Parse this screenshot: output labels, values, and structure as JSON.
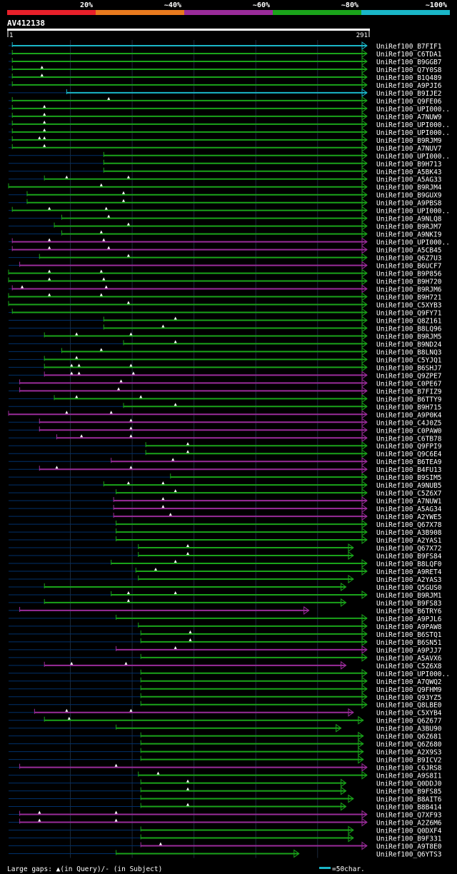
{
  "query_id": "AV412138",
  "axis": {
    "start": "1",
    "end": "291",
    "length": 291
  },
  "identity_legend": [
    {
      "label": "20%",
      "color": "#e8202a"
    },
    {
      "label": "~40%",
      "color": "#e87a1e"
    },
    {
      "label": "~60%",
      "color": "#9a2c9a"
    },
    {
      "label": "~80%",
      "color": "#1aa31a"
    },
    {
      "label": "~100%",
      "color": "#1ab6c8"
    }
  ],
  "colors": {
    "teal": "#1ab6c8",
    "green": "#1aa31a",
    "purple": "#9a2c9a",
    "gap": "#00306a",
    "grid": "#1c2a3c",
    "text": "#ffffff"
  },
  "footer": {
    "gaps_label": "Large gaps: ▲(in Query)/- (in Subject)",
    "scale_label": "=50char."
  },
  "chart_data": {
    "type": "alignment",
    "hits": [
      {
        "name": "UniRef100_B7FIF1",
        "color": "teal",
        "qs": 4,
        "qe": 291,
        "marks": []
      },
      {
        "name": "UniRef100_C6TDA1",
        "color": "green",
        "qs": 4,
        "qe": 291,
        "marks": []
      },
      {
        "name": "UniRef100_B9GGB7",
        "color": "green",
        "qs": 4,
        "qe": 291,
        "marks": []
      },
      {
        "name": "UniRef100_Q7Y0S8",
        "color": "green",
        "qs": 4,
        "qe": 291,
        "marks": [
          28
        ]
      },
      {
        "name": "UniRef100_B1Q489",
        "color": "green",
        "qs": 4,
        "qe": 291,
        "marks": [
          28
        ]
      },
      {
        "name": "UniRef100_A9PJI6",
        "color": "green",
        "qs": 4,
        "qe": 291,
        "marks": []
      },
      {
        "name": "UniRef100_B9IJE2",
        "color": "teal",
        "qs": 48,
        "qe": 291,
        "marks": []
      },
      {
        "name": "UniRef100_Q9FE06",
        "color": "green",
        "qs": 4,
        "qe": 291,
        "marks": [
          82
        ]
      },
      {
        "name": "UniRef100_UPI000..",
        "color": "green",
        "qs": 4,
        "qe": 291,
        "marks": [
          30
        ]
      },
      {
        "name": "UniRef100_A7NUW9",
        "color": "green",
        "qs": 4,
        "qe": 291,
        "marks": [
          30
        ]
      },
      {
        "name": "UniRef100_UPI000..",
        "color": "green",
        "qs": 4,
        "qe": 291,
        "marks": [
          30
        ]
      },
      {
        "name": "UniRef100_UPI000..",
        "color": "green",
        "qs": 4,
        "qe": 291,
        "marks": [
          30
        ]
      },
      {
        "name": "UniRef100_B9RJM9",
        "color": "green",
        "qs": 4,
        "qe": 291,
        "marks": [
          26,
          30
        ]
      },
      {
        "name": "UniRef100_A7NUV7",
        "color": "green",
        "qs": 4,
        "qe": 291,
        "marks": [
          30
        ]
      },
      {
        "name": "UniRef100_UPI000..",
        "color": "green",
        "qs": 78,
        "qe": 291,
        "marks": []
      },
      {
        "name": "UniRef100_B9H713",
        "color": "green",
        "qs": 78,
        "qe": 291,
        "marks": []
      },
      {
        "name": "UniRef100_A5BK43",
        "color": "green",
        "qs": 78,
        "qe": 291,
        "marks": []
      },
      {
        "name": "UniRef100_A5AG33",
        "color": "green",
        "qs": 30,
        "qe": 291,
        "marks": [
          48,
          98
        ]
      },
      {
        "name": "UniRef100_B9RJM4",
        "color": "green",
        "qs": 1,
        "qe": 291,
        "marks": [
          76
        ]
      },
      {
        "name": "UniRef100_B9GUX9",
        "color": "green",
        "qs": 16,
        "qe": 291,
        "marks": [
          94
        ]
      },
      {
        "name": "UniRef100_A9PBS8",
        "color": "green",
        "qs": 16,
        "qe": 291,
        "marks": [
          94
        ]
      },
      {
        "name": "UniRef100_UPI000..",
        "color": "green",
        "qs": 4,
        "qe": 291,
        "marks": [
          34,
          80
        ]
      },
      {
        "name": "UniRef100_A9NLQ8",
        "color": "green",
        "qs": 44,
        "qe": 291,
        "marks": [
          82
        ]
      },
      {
        "name": "UniRef100_B9RJM7",
        "color": "green",
        "qs": 38,
        "qe": 291,
        "marks": [
          98
        ]
      },
      {
        "name": "UniRef100_A9NKI9",
        "color": "green",
        "qs": 44,
        "qe": 291,
        "marks": [
          76
        ]
      },
      {
        "name": "UniRef100_UPI000..",
        "color": "purple",
        "qs": 4,
        "qe": 291,
        "marks": [
          34,
          78
        ]
      },
      {
        "name": "UniRef100_A5CB45",
        "color": "purple",
        "qs": 4,
        "qe": 291,
        "marks": [
          34,
          82
        ]
      },
      {
        "name": "UniRef100_Q6Z7U3",
        "color": "green",
        "qs": 26,
        "qe": 291,
        "marks": [
          98
        ]
      },
      {
        "name": "UniRef100_B6UCF7",
        "color": "purple",
        "qs": 10,
        "qe": 291,
        "marks": []
      },
      {
        "name": "UniRef100_B9P856",
        "color": "green",
        "qs": 1,
        "qe": 291,
        "marks": [
          34,
          76
        ]
      },
      {
        "name": "UniRef100_B9H720",
        "color": "green",
        "qs": 1,
        "qe": 291,
        "marks": [
          34,
          78
        ]
      },
      {
        "name": "UniRef100_B9RJM6",
        "color": "purple",
        "qs": 4,
        "qe": 291,
        "marks": [
          12,
          80
        ]
      },
      {
        "name": "UniRef100_B9H721",
        "color": "green",
        "qs": 1,
        "qe": 291,
        "marks": [
          34,
          76
        ]
      },
      {
        "name": "UniRef100_C5XYB3",
        "color": "green",
        "qs": 1,
        "qe": 291,
        "marks": [
          98
        ]
      },
      {
        "name": "UniRef100_Q9FY71",
        "color": "green",
        "qs": 4,
        "qe": 291,
        "marks": []
      },
      {
        "name": "UniRef100_Q8Z161",
        "color": "green",
        "qs": 78,
        "qe": 291,
        "marks": [
          136
        ]
      },
      {
        "name": "UniRef100_B8LQ96",
        "color": "green",
        "qs": 78,
        "qe": 291,
        "marks": [
          126
        ]
      },
      {
        "name": "UniRef100_B9RJM5",
        "color": "green",
        "qs": 30,
        "qe": 291,
        "marks": [
          56,
          100
        ]
      },
      {
        "name": "UniRef100_B9ND24",
        "color": "green",
        "qs": 94,
        "qe": 291,
        "marks": [
          136
        ]
      },
      {
        "name": "UniRef100_B8LNQ3",
        "color": "green",
        "qs": 44,
        "qe": 291,
        "marks": [
          76
        ]
      },
      {
        "name": "UniRef100_C5YJQ1",
        "color": "green",
        "qs": 30,
        "qe": 291,
        "marks": [
          56
        ]
      },
      {
        "name": "UniRef100_B6SHJ7",
        "color": "green",
        "qs": 30,
        "qe": 291,
        "marks": [
          52,
          58,
          100
        ]
      },
      {
        "name": "UniRef100_Q9ZPE7",
        "color": "purple",
        "qs": 30,
        "qe": 291,
        "marks": [
          52,
          58,
          102
        ]
      },
      {
        "name": "UniRef100_C0PE67",
        "color": "purple",
        "qs": 10,
        "qe": 291,
        "marks": [
          92
        ]
      },
      {
        "name": "UniRef100_B7FIZ9",
        "color": "purple",
        "qs": 10,
        "qe": 291,
        "marks": [
          90
        ]
      },
      {
        "name": "UniRef100_B6TTY9",
        "color": "green",
        "qs": 38,
        "qe": 291,
        "marks": [
          56,
          108
        ]
      },
      {
        "name": "UniRef100_B9H715",
        "color": "green",
        "qs": 94,
        "qe": 291,
        "marks": [
          136
        ]
      },
      {
        "name": "UniRef100_A9P0K4",
        "color": "purple",
        "qs": 1,
        "qe": 291,
        "marks": [
          48,
          84
        ]
      },
      {
        "name": "UniRef100_C4J0Z5",
        "color": "purple",
        "qs": 26,
        "qe": 291,
        "marks": [
          100
        ]
      },
      {
        "name": "UniRef100_C0PAW0",
        "color": "purple",
        "qs": 26,
        "qe": 291,
        "marks": [
          100
        ]
      },
      {
        "name": "UniRef100_C6TB78",
        "color": "purple",
        "qs": 40,
        "qe": 291,
        "marks": [
          60,
          100
        ]
      },
      {
        "name": "UniRef100_Q9FPI9",
        "color": "green",
        "qs": 112,
        "qe": 291,
        "marks": [
          146
        ]
      },
      {
        "name": "UniRef100_Q9C6E4",
        "color": "green",
        "qs": 112,
        "qe": 291,
        "marks": [
          146
        ]
      },
      {
        "name": "UniRef100_B6TEA9",
        "color": "purple",
        "qs": 84,
        "qe": 291,
        "marks": [
          134
        ]
      },
      {
        "name": "UniRef100_B4FU13",
        "color": "purple",
        "qs": 26,
        "qe": 291,
        "marks": [
          40,
          100
        ]
      },
      {
        "name": "UniRef100_B9SIM5",
        "color": "green",
        "qs": 132,
        "qe": 291,
        "marks": []
      },
      {
        "name": "UniRef100_A9NUB5",
        "color": "green",
        "qs": 78,
        "qe": 291,
        "marks": [
          98,
          126
        ]
      },
      {
        "name": "UniRef100_C5Z6X7",
        "color": "green",
        "qs": 88,
        "qe": 291,
        "marks": [
          136
        ]
      },
      {
        "name": "UniRef100_A7NUW1",
        "color": "purple",
        "qs": 86,
        "qe": 291,
        "marks": [
          126
        ]
      },
      {
        "name": "UniRef100_A5AG34",
        "color": "purple",
        "qs": 86,
        "qe": 291,
        "marks": [
          126
        ]
      },
      {
        "name": "UniRef100_A2YWE5",
        "color": "purple",
        "qs": 86,
        "qe": 291,
        "marks": [
          132
        ]
      },
      {
        "name": "UniRef100_Q67X78",
        "color": "green",
        "qs": 88,
        "qe": 291,
        "marks": []
      },
      {
        "name": "UniRef100_A3B908",
        "color": "green",
        "qs": 88,
        "qe": 291,
        "marks": []
      },
      {
        "name": "UniRef100_A2YAS1",
        "color": "green",
        "qs": 88,
        "qe": 291,
        "marks": []
      },
      {
        "name": "UniRef100_Q67X72",
        "color": "green",
        "qs": 106,
        "qe": 280,
        "marks": [
          146
        ]
      },
      {
        "name": "UniRef100_B9FS84",
        "color": "green",
        "qs": 106,
        "qe": 280,
        "marks": [
          146
        ]
      },
      {
        "name": "UniRef100_B8LQF0",
        "color": "green",
        "qs": 84,
        "qe": 291,
        "marks": [
          136
        ]
      },
      {
        "name": "UniRef100_A9RET4",
        "color": "green",
        "qs": 104,
        "qe": 291,
        "marks": [
          120
        ]
      },
      {
        "name": "UniRef100_A2YAS3",
        "color": "green",
        "qs": 106,
        "qe": 280,
        "marks": []
      },
      {
        "name": "UniRef100_Q5GUS0",
        "color": "green",
        "qs": 30,
        "qe": 274,
        "marks": []
      },
      {
        "name": "UniRef100_B9RJM1",
        "color": "green",
        "qs": 84,
        "qe": 291,
        "marks": [
          98,
          136
        ]
      },
      {
        "name": "UniRef100_B9FS83",
        "color": "green",
        "qs": 30,
        "qe": 274,
        "marks": [
          98
        ]
      },
      {
        "name": "UniRef100_B6TRY6",
        "color": "purple",
        "qs": 10,
        "qe": 244,
        "marks": []
      },
      {
        "name": "UniRef100_A9PJL6",
        "color": "green",
        "qs": 88,
        "qe": 291,
        "marks": []
      },
      {
        "name": "UniRef100_A9PAW8",
        "color": "green",
        "qs": 106,
        "qe": 291,
        "marks": []
      },
      {
        "name": "UniRef100_B6STQ1",
        "color": "green",
        "qs": 108,
        "qe": 291,
        "marks": [
          148
        ]
      },
      {
        "name": "UniRef100_B6SN51",
        "color": "green",
        "qs": 108,
        "qe": 291,
        "marks": [
          148
        ]
      },
      {
        "name": "UniRef100_A9PJJ7",
        "color": "purple",
        "qs": 88,
        "qe": 291,
        "marks": [
          136
        ]
      },
      {
        "name": "UniRef100_A5AVX6",
        "color": "green",
        "qs": 108,
        "qe": 291,
        "marks": []
      },
      {
        "name": "UniRef100_C5Z6X8",
        "color": "purple",
        "qs": 30,
        "qe": 274,
        "marks": [
          52,
          96
        ]
      },
      {
        "name": "UniRef100_UPI000..",
        "color": "green",
        "qs": 108,
        "qe": 291,
        "marks": []
      },
      {
        "name": "UniRef100_A7QWQ2",
        "color": "green",
        "qs": 108,
        "qe": 291,
        "marks": []
      },
      {
        "name": "UniRef100_Q9FHM9",
        "color": "green",
        "qs": 108,
        "qe": 291,
        "marks": []
      },
      {
        "name": "UniRef100_Q93YZ5",
        "color": "green",
        "qs": 108,
        "qe": 291,
        "marks": []
      },
      {
        "name": "UniRef100_Q8LBE0",
        "color": "green",
        "qs": 108,
        "qe": 291,
        "marks": []
      },
      {
        "name": "UniRef100_C5XYB4",
        "color": "purple",
        "qs": 22,
        "qe": 280,
        "marks": [
          48,
          100
        ]
      },
      {
        "name": "UniRef100_Q6Z677",
        "color": "green",
        "qs": 30,
        "qe": 288,
        "marks": [
          50
        ]
      },
      {
        "name": "UniRef100_A3BU90",
        "color": "green",
        "qs": 88,
        "qe": 270,
        "marks": []
      },
      {
        "name": "UniRef100_Q6Z681",
        "color": "green",
        "qs": 108,
        "qe": 288,
        "marks": []
      },
      {
        "name": "UniRef100_Q6Z680",
        "color": "green",
        "qs": 108,
        "qe": 288,
        "marks": []
      },
      {
        "name": "UniRef100_A2X9S3",
        "color": "green",
        "qs": 108,
        "qe": 288,
        "marks": []
      },
      {
        "name": "UniRef100_B9ICV2",
        "color": "green",
        "qs": 108,
        "qe": 288,
        "marks": []
      },
      {
        "name": "UniRef100_C6JRS8",
        "color": "purple",
        "qs": 10,
        "qe": 291,
        "marks": [
          88
        ]
      },
      {
        "name": "UniRef100_A9S8I1",
        "color": "green",
        "qs": 106,
        "qe": 291,
        "marks": [
          122
        ]
      },
      {
        "name": "UniRef100_Q0DDJ0",
        "color": "green",
        "qs": 108,
        "qe": 274,
        "marks": [
          146
        ]
      },
      {
        "name": "UniRef100_B9FS85",
        "color": "green",
        "qs": 108,
        "qe": 274,
        "marks": [
          146
        ]
      },
      {
        "name": "UniRef100_B8AIT6",
        "color": "green",
        "qs": 108,
        "qe": 280,
        "marks": []
      },
      {
        "name": "UniRef100_B8B414",
        "color": "green",
        "qs": 108,
        "qe": 274,
        "marks": [
          146
        ]
      },
      {
        "name": "UniRef100_Q7XF93",
        "color": "purple",
        "qs": 10,
        "qe": 291,
        "marks": [
          26,
          88
        ]
      },
      {
        "name": "UniRef100_A2Z6M6",
        "color": "purple",
        "qs": 10,
        "qe": 291,
        "marks": [
          26,
          88
        ]
      },
      {
        "name": "UniRef100_Q0DXF4",
        "color": "green",
        "qs": 108,
        "qe": 280,
        "marks": []
      },
      {
        "name": "UniRef100_B9F331",
        "color": "green",
        "qs": 108,
        "qe": 280,
        "marks": []
      },
      {
        "name": "UniRef100_A9T8E0",
        "color": "purple",
        "qs": 108,
        "qe": 291,
        "marks": [
          124
        ]
      },
      {
        "name": "UniRef100_Q6YTS3",
        "color": "green",
        "qs": 88,
        "qe": 236,
        "marks": []
      }
    ]
  }
}
